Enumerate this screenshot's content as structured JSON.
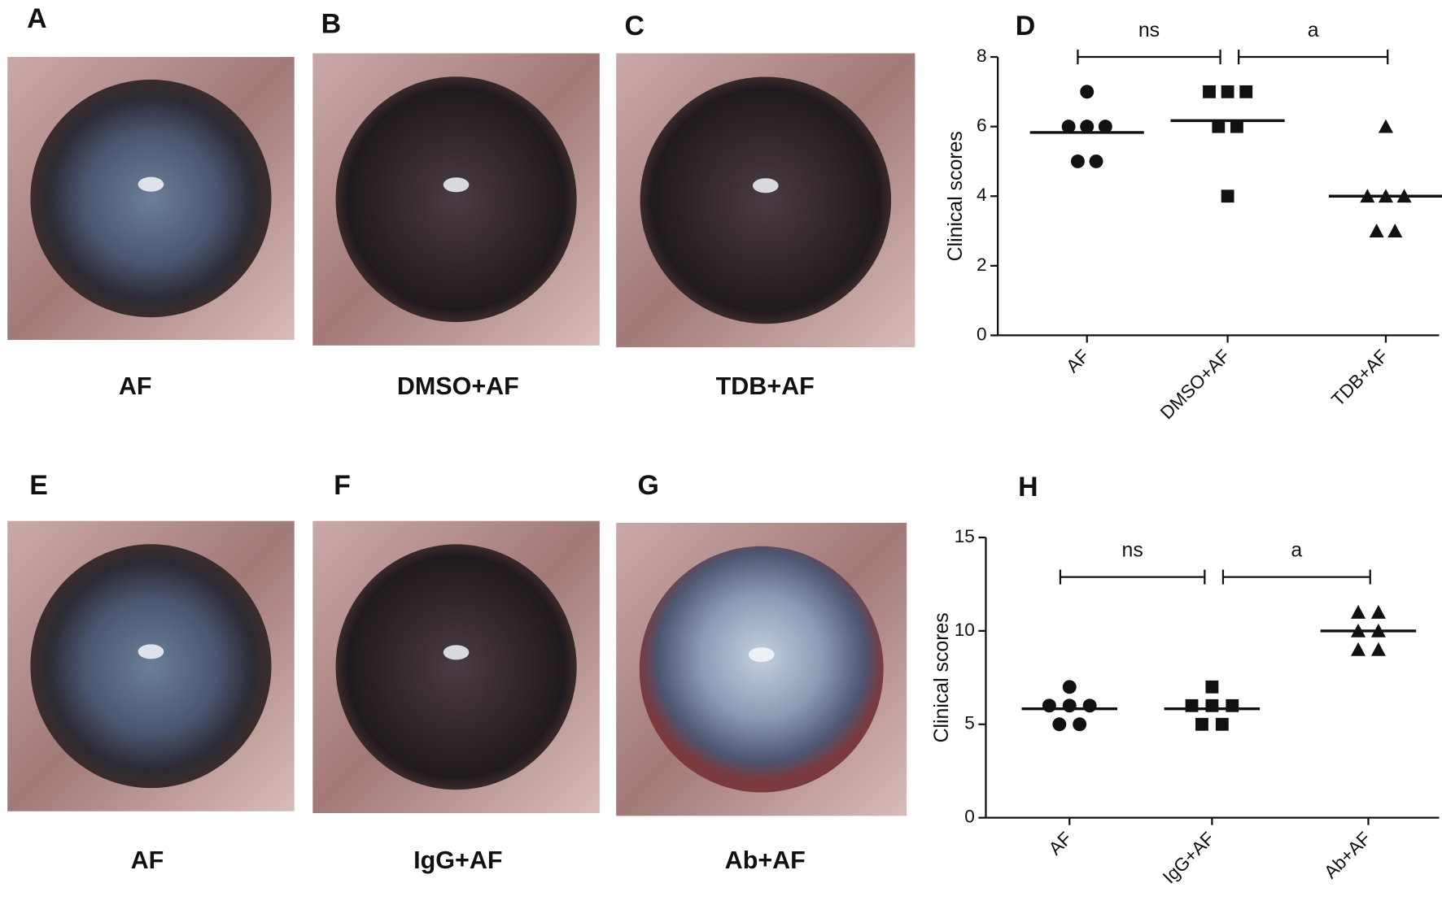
{
  "panels": [
    {
      "letter": "A",
      "caption": "AF"
    },
    {
      "letter": "B",
      "caption": "DMSO+AF"
    },
    {
      "letter": "C",
      "caption": "TDB+AF"
    },
    {
      "letter": "E",
      "caption": "AF"
    },
    {
      "letter": "F",
      "caption": "IgG+AF"
    },
    {
      "letter": "G",
      "caption": "Ab+AF"
    }
  ],
  "chart_data": [
    {
      "type": "dot",
      "title": "D",
      "ylabel": "Clinical scores",
      "categories": [
        "AF",
        "DMSO+AF",
        "TDB+AF"
      ],
      "values": [
        [
          7,
          6,
          6,
          6,
          5,
          5
        ],
        [
          7,
          7,
          7,
          6,
          6,
          4
        ],
        [
          6,
          4,
          4,
          4,
          3,
          3
        ]
      ],
      "means": [
        5.83,
        6.17,
        4
      ],
      "markers": [
        "circle",
        "square",
        "triangle"
      ],
      "color": "#111111",
      "annotations": [
        "ns",
        "a"
      ],
      "ylim": [
        0,
        8
      ],
      "yticks": [
        0,
        2,
        4,
        6,
        8
      ]
    },
    {
      "type": "dot",
      "title": "H",
      "ylabel": "Clinical scores",
      "categories": [
        "AF",
        "IgG+AF",
        "Ab+AF"
      ],
      "values": [
        [
          7,
          6,
          6,
          6,
          5,
          5
        ],
        [
          7,
          6,
          6,
          6,
          5,
          5
        ],
        [
          11,
          11,
          10,
          10,
          9,
          9
        ]
      ],
      "means": [
        5.83,
        5.83,
        10
      ],
      "markers": [
        "circle",
        "square",
        "triangle"
      ],
      "color": "#111111",
      "annotations": [
        "ns",
        "a"
      ],
      "ylim": [
        0,
        15
      ],
      "yticks": [
        0,
        5,
        10,
        15
      ]
    }
  ]
}
